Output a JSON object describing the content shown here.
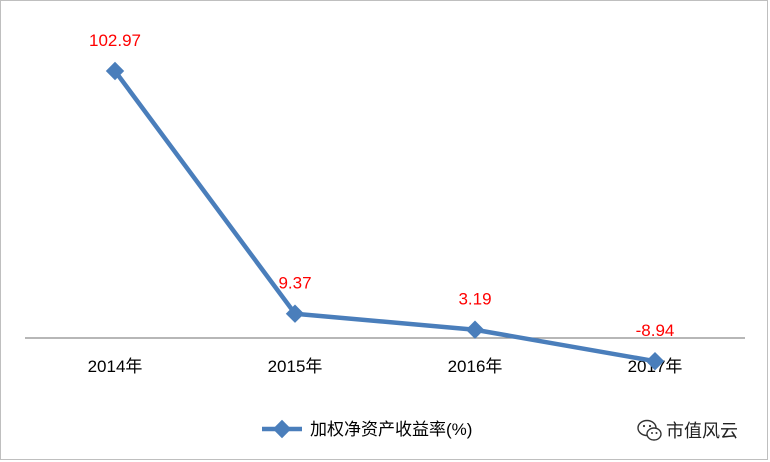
{
  "chart_data": {
    "type": "line",
    "categories": [
      "2014年",
      "2015年",
      "2016年",
      "2017年"
    ],
    "series": [
      {
        "name": "加权净资产收益率(%)",
        "values": [
          102.97,
          9.37,
          3.19,
          -8.94
        ],
        "labels": [
          "102.97",
          "9.37",
          "3.19",
          "-8.94"
        ],
        "color": "#4a7ebb"
      }
    ],
    "legend_position": "bottom",
    "data_label_color": "#ff0000",
    "grid": false
  },
  "watermark": {
    "icon": "wechat-icon",
    "text": "市值风云"
  }
}
